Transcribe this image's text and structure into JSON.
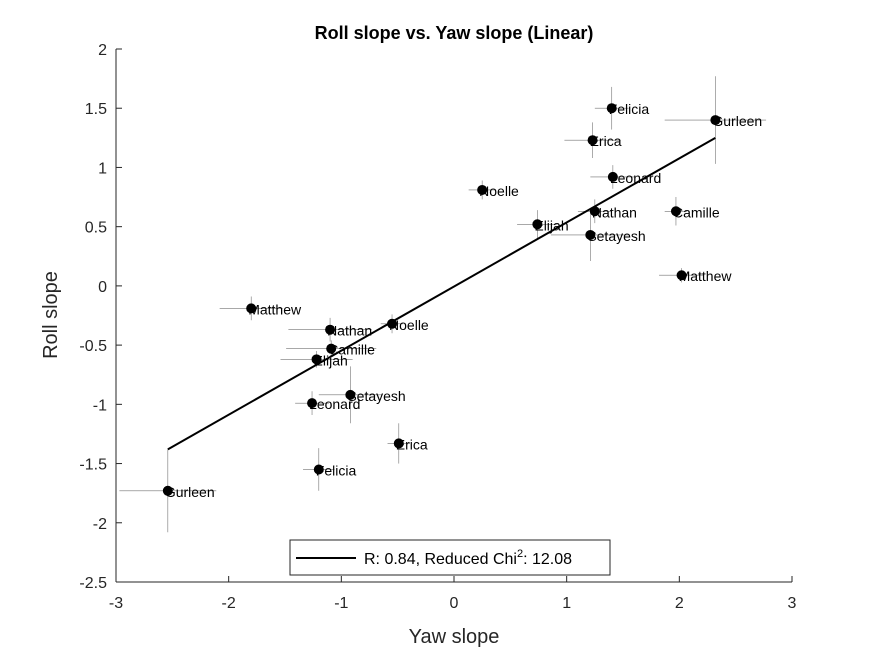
{
  "chart_data": {
    "type": "scatter",
    "title": "Roll slope vs. Yaw slope (Linear)",
    "xlabel": "Yaw slope",
    "ylabel": "Roll slope",
    "xlim": [
      -3,
      3
    ],
    "ylim": [
      -2.5,
      2
    ],
    "xticks": [
      -3,
      -2,
      -1,
      0,
      1,
      2,
      3
    ],
    "yticks": [
      -2.5,
      -2,
      -1.5,
      -1,
      -0.5,
      0,
      0.5,
      1,
      1.5,
      2
    ],
    "xtick_labels": [
      "-3",
      "-2",
      "-1",
      "0",
      "1",
      "2",
      "3"
    ],
    "ytick_labels": [
      "-2.5",
      "-2",
      "-1.5",
      "-1",
      "-0.5",
      "0",
      "0.5",
      "1",
      "1.5",
      "2"
    ],
    "points": [
      {
        "label": "Felicia",
        "x": 1.4,
        "y": 1.5,
        "xerr": 0.15,
        "yerr": 0.18
      },
      {
        "label": "Gurleen",
        "x": 2.32,
        "y": 1.4,
        "xerr": 0.45,
        "yerr": 0.37
      },
      {
        "label": "Erica",
        "x": 1.23,
        "y": 1.23,
        "xerr": 0.25,
        "yerr": 0.15
      },
      {
        "label": "Leonard",
        "x": 1.41,
        "y": 0.92,
        "xerr": 0.2,
        "yerr": 0.1
      },
      {
        "label": "Noelle",
        "x": 0.25,
        "y": 0.81,
        "xerr": 0.12,
        "yerr": 0.08
      },
      {
        "label": "Nathan",
        "x": 1.25,
        "y": 0.63,
        "xerr": 0.15,
        "yerr": 0.1
      },
      {
        "label": "Camille",
        "x": 1.97,
        "y": 0.63,
        "xerr": 0.1,
        "yerr": 0.12
      },
      {
        "label": "Elijah",
        "x": 0.74,
        "y": 0.52,
        "xerr": 0.18,
        "yerr": 0.12
      },
      {
        "label": "Setayesh",
        "x": 1.21,
        "y": 0.43,
        "xerr": 0.35,
        "yerr": 0.22
      },
      {
        "label": "Matthew",
        "x": 2.02,
        "y": 0.09,
        "xerr": 0.2,
        "yerr": 0.06
      },
      {
        "label": "Matthew",
        "x": -1.8,
        "y": -0.19,
        "xerr": 0.28,
        "yerr": 0.1
      },
      {
        "label": "Noelle",
        "x": -0.55,
        "y": -0.32,
        "xerr": 0.1,
        "yerr": 0.08
      },
      {
        "label": "Nathan",
        "x": -1.1,
        "y": -0.37,
        "xerr": 0.37,
        "yerr": 0.1
      },
      {
        "label": "Camille",
        "x": -1.09,
        "y": -0.53,
        "xerr": 0.4,
        "yerr": 0.07
      },
      {
        "label": "Elijah",
        "x": -1.22,
        "y": -0.62,
        "xerr": 0.32,
        "yerr": 0.07
      },
      {
        "label": "Setayesh",
        "x": -0.92,
        "y": -0.92,
        "xerr": 0.28,
        "yerr": 0.24
      },
      {
        "label": "Leonard",
        "x": -1.26,
        "y": -0.99,
        "xerr": 0.15,
        "yerr": 0.1
      },
      {
        "label": "Erica",
        "x": -0.49,
        "y": -1.33,
        "xerr": 0.1,
        "yerr": 0.17
      },
      {
        "label": "Felicia",
        "x": -1.2,
        "y": -1.55,
        "xerr": 0.14,
        "yerr": 0.18
      },
      {
        "label": "Gurleen",
        "x": -2.54,
        "y": -1.73,
        "xerr": 0.43,
        "yerr": 0.35
      }
    ],
    "fit_line": {
      "x": [
        -2.54,
        2.32
      ],
      "y": [
        -1.38,
        1.25
      ]
    },
    "legend": {
      "placement": "bottom-center",
      "prefix": "R: 0.84, Reduced Chi",
      "superscript": "2",
      "suffix": ": 12.08"
    },
    "grid": false
  }
}
